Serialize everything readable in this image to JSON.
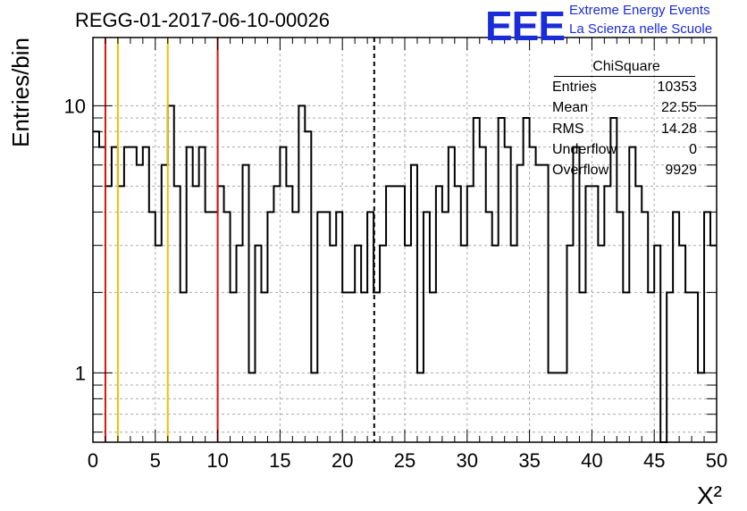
{
  "header": {
    "title": "REGG-01-2017-06-10-00026",
    "logo_text": "EEE",
    "logo_line1": "Extreme Energy Events",
    "logo_line2": "La Scienza nelle Scuole"
  },
  "stats": {
    "title": "ChiSquare",
    "rows": [
      {
        "label": "Entries",
        "value": "10353"
      },
      {
        "label": "Mean",
        "value": "22.55"
      },
      {
        "label": "RMS",
        "value": "14.28"
      },
      {
        "label": "Underflow",
        "value": "0"
      },
      {
        "label": "Overflow",
        "value": "9929"
      }
    ]
  },
  "colors": {
    "histogram": "#000000",
    "red_line": "#e01010",
    "yellow_line": "#f0c000",
    "mean_line": "#000000",
    "grid": "#aaaaaa",
    "logo": "#1a2bd8"
  },
  "chart_data": {
    "type": "histogram",
    "title": "REGG-01-2017-06-10-00026",
    "xlabel": "X²",
    "ylabel": "Entries/bin",
    "xlim": [
      0,
      50
    ],
    "ylim": [
      0.55,
      18
    ],
    "yscale": "log",
    "grid": true,
    "bin_width": 0.5,
    "x_ticks": [
      0,
      5,
      10,
      15,
      20,
      25,
      30,
      35,
      40,
      45,
      50
    ],
    "y_ticks": [
      1,
      10
    ],
    "values": [
      8,
      7,
      5,
      7,
      5,
      7,
      7,
      6,
      7,
      4,
      3,
      6,
      10,
      5,
      2,
      7,
      5,
      7,
      4,
      4,
      5,
      4,
      2,
      3,
      6,
      1,
      3,
      2,
      4,
      5,
      7,
      5,
      4,
      10,
      8,
      1,
      4,
      4,
      3,
      4,
      2,
      2,
      3,
      2,
      4,
      2,
      3,
      5,
      5,
      5,
      3,
      6,
      1,
      4,
      2,
      5,
      4,
      7,
      5,
      3,
      5,
      9,
      7,
      4,
      3,
      9,
      7,
      3,
      6,
      9,
      7,
      6,
      6,
      1,
      1,
      1,
      3,
      7,
      2,
      5,
      5,
      3,
      5,
      9,
      4,
      2,
      7,
      5,
      4,
      2,
      3,
      0.5,
      2,
      4,
      3,
      2,
      2,
      1,
      4,
      3
    ],
    "vertical_lines": [
      {
        "x": 1,
        "color": "red"
      },
      {
        "x": 2,
        "color": "yellow"
      },
      {
        "x": 6,
        "color": "yellow"
      },
      {
        "x": 10,
        "color": "red"
      },
      {
        "x": 22.55,
        "color": "black",
        "style": "dashed"
      }
    ]
  }
}
